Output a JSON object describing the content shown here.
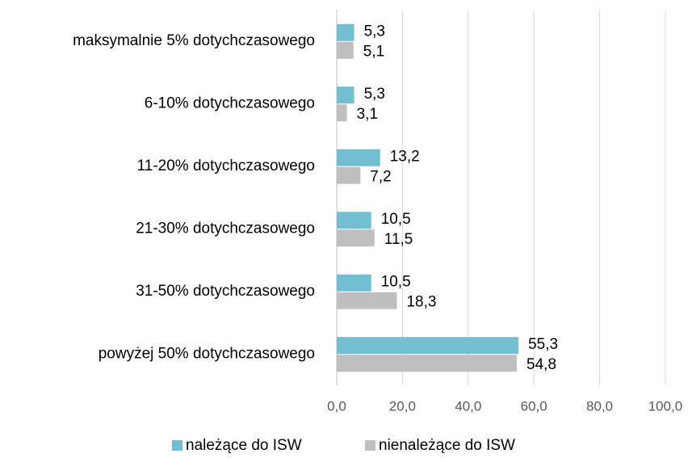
{
  "chart_data": {
    "type": "hbar",
    "categories": [
      "maksymalnie 5% dotychczasowego",
      "6-10% dotychczasowego",
      "11-20% dotychczasowego",
      "21-30% dotychczasowego",
      "31-50% dotychczasowego",
      "powyżej 50% dotychczasowego"
    ],
    "series": [
      {
        "name": "należące do ISW",
        "color": "#72bfd2",
        "values": [
          5.3,
          5.3,
          13.2,
          10.5,
          10.5,
          55.3
        ],
        "value_labels": [
          "5,3",
          "5,3",
          "13,2",
          "10,5",
          "10,5",
          "55,3"
        ]
      },
      {
        "name": "nienależące do ISW",
        "color": "#bfbfbf",
        "values": [
          5.1,
          3.1,
          7.2,
          11.5,
          18.3,
          54.8
        ],
        "value_labels": [
          "5,1",
          "3,1",
          "7,2",
          "11,5",
          "18,3",
          "54,8"
        ]
      }
    ],
    "xlim": [
      0,
      100
    ],
    "xticks": [
      {
        "value": 0,
        "label": "0,0"
      },
      {
        "value": 20,
        "label": "20,0"
      },
      {
        "value": 40,
        "label": "40,0"
      },
      {
        "value": 60,
        "label": "60,0"
      },
      {
        "value": 80,
        "label": "80,0"
      },
      {
        "value": 100,
        "label": "100,0"
      }
    ],
    "grid": true,
    "legend": "bottom"
  }
}
